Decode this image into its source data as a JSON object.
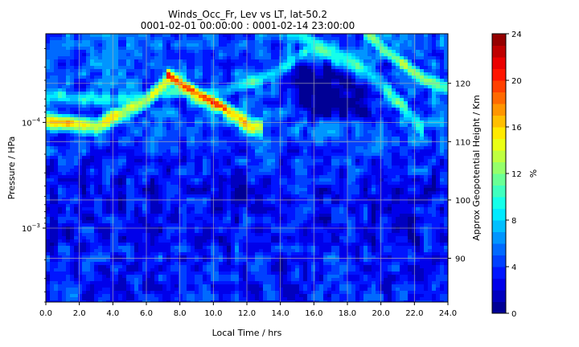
{
  "chart_data": {
    "type": "heatmap",
    "title": "Winds_Occ_Fr, Lev vs LT, lat-50.2",
    "subtitle": "0001-02-01 00:00:00 : 0001-02-14 23:00:00",
    "xlabel": "Local Time / hrs",
    "ylabel": "Pressure / HPa",
    "y2label": "Approx Geopotential Height / Km",
    "colorbar_label": "%",
    "x_range": [
      0,
      24
    ],
    "x_ticks": [
      "0.0",
      "2.0",
      "4.0",
      "6.0",
      "8.0",
      "10.0",
      "12.0",
      "14.0",
      "16.0",
      "18.0",
      "20.0",
      "22.0",
      "24.0"
    ],
    "y_scale": "log",
    "y_range": [
      0.005,
      1.45e-05
    ],
    "y_ticks": [
      {
        "base": "10",
        "exp": "−4",
        "value": 0.0001
      },
      {
        "base": "10",
        "exp": "−3",
        "value": 0.001
      }
    ],
    "y2_range": [
      82.5,
      128.5
    ],
    "y2_ticks": [
      "90",
      "100",
      "110",
      "120"
    ],
    "colorbar_range": [
      0,
      24
    ],
    "colorbar_ticks": [
      "0",
      "4",
      "8",
      "12",
      "16",
      "20",
      "24"
    ],
    "grid": true,
    "colormap": "jet",
    "levels": 24,
    "features": [
      {
        "name": "upper band",
        "points": [
          [
            0,
            118
          ],
          [
            5,
            117
          ],
          [
            8,
            119
          ],
          [
            10,
            118
          ],
          [
            12,
            120
          ],
          [
            14,
            122
          ],
          [
            16,
            127
          ]
        ],
        "peak": 9,
        "width": 1.8
      },
      {
        "name": "lower band",
        "points": [
          [
            0,
            113.5
          ],
          [
            3,
            112.5
          ],
          [
            6,
            117
          ],
          [
            7.5,
            121
          ],
          [
            9,
            118
          ],
          [
            10.5,
            116
          ],
          [
            12,
            113
          ],
          [
            13,
            112
          ]
        ],
        "peak": 15,
        "width": 1.9
      },
      {
        "name": "hot spot",
        "points": [
          [
            7.2,
            121.5
          ],
          [
            8.3,
            119.5
          ],
          [
            9.5,
            117.5
          ],
          [
            10.8,
            115.5
          ]
        ],
        "peak": 20,
        "width": 1.3
      },
      {
        "name": "right band",
        "points": [
          [
            14.5,
            129
          ],
          [
            16.5,
            126
          ],
          [
            18.5,
            123
          ],
          [
            20,
            120
          ],
          [
            21,
            117
          ],
          [
            22.5,
            112
          ]
        ],
        "peak": 10,
        "width": 2.2
      },
      {
        "name": "upper right band",
        "points": [
          [
            19,
            129
          ],
          [
            20.5,
            125
          ],
          [
            22.5,
            121
          ],
          [
            24,
            119
          ]
        ],
        "peak": 12,
        "width": 1.7
      }
    ],
    "background_values": {
      "top": 5,
      "middle": 3,
      "bottom": 3.5
    },
    "low_region": {
      "x": [
        14,
        21
      ],
      "y": [
        113,
        124
      ],
      "value": 0.6
    }
  }
}
